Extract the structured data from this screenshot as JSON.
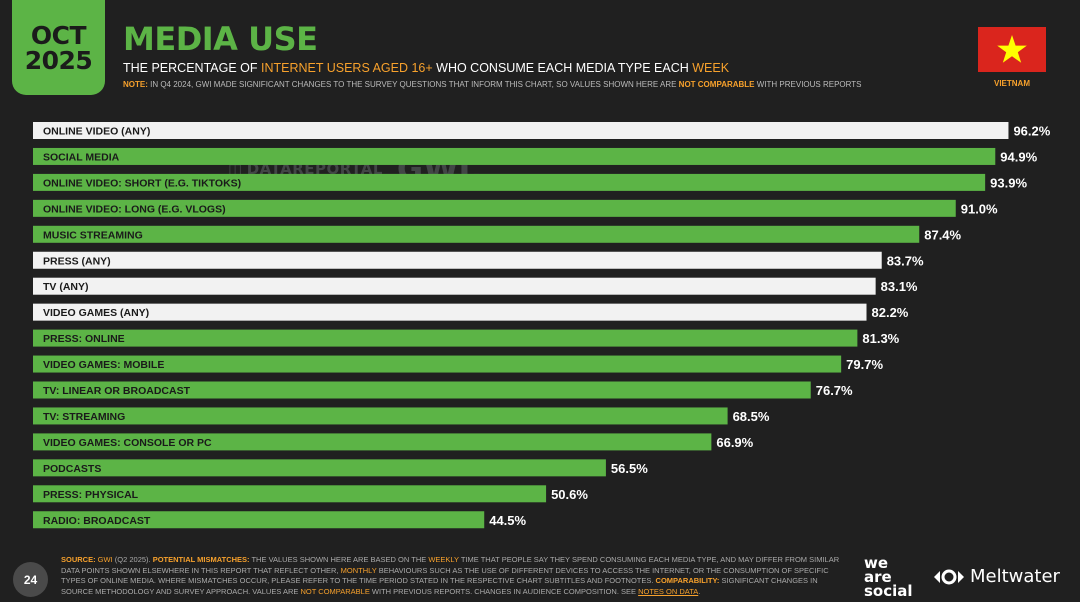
{
  "header": {
    "month": "OCT",
    "year": "2025",
    "title": "MEDIA USE",
    "subtitle_pre": "THE PERCENTAGE OF ",
    "subtitle_hl1": "INTERNET USERS AGED 16+",
    "subtitle_mid": " WHO CONSUME EACH MEDIA TYPE EACH ",
    "subtitle_hl2": "WEEK",
    "note_label": "NOTE:",
    "note_text": " IN Q4 2024, GWI MADE SIGNIFICANT CHANGES TO THE SURVEY QUESTIONS THAT INFORM THIS CHART, SO VALUES SHOWN HERE ARE ",
    "note_hl": "NOT COMPARABLE",
    "note_end": " WITH PREVIOUS REPORTS",
    "country": "VIETNAM"
  },
  "watermark": {
    "datareportal": "DATAREPORTAL",
    "gwi": "GWI."
  },
  "colors": {
    "green": "#5cb446",
    "white_bar": "#f2f2f2",
    "orange": "#f7a12c",
    "flag_red": "#da251d",
    "flag_star": "#ffff00"
  },
  "chart_data": {
    "type": "bar",
    "orientation": "horizontal",
    "title": "MEDIA USE",
    "value_suffix": "%",
    "xlim": [
      0,
      100
    ],
    "categories": [
      "ONLINE VIDEO (ANY)",
      "SOCIAL MEDIA",
      "ONLINE VIDEO: SHORT (E.G. TIKTOKS)",
      "ONLINE VIDEO: LONG (E.G. VLOGS)",
      "MUSIC STREAMING",
      "PRESS (ANY)",
      "TV (ANY)",
      "VIDEO GAMES (ANY)",
      "PRESS: ONLINE",
      "VIDEO GAMES: MOBILE",
      "TV: LINEAR OR BROADCAST",
      "TV: STREAMING",
      "VIDEO GAMES: CONSOLE OR PC",
      "PODCASTS",
      "PRESS: PHYSICAL",
      "RADIO: BROADCAST"
    ],
    "values": [
      96.2,
      94.9,
      93.9,
      91.0,
      87.4,
      83.7,
      83.1,
      82.2,
      81.3,
      79.7,
      76.7,
      68.5,
      66.9,
      56.5,
      50.6,
      44.5
    ],
    "labels": [
      "96.2%",
      "94.9%",
      "93.9%",
      "91.0%",
      "87.4%",
      "83.7%",
      "83.1%",
      "82.2%",
      "81.3%",
      "79.7%",
      "76.7%",
      "68.5%",
      "66.9%",
      "56.5%",
      "50.6%",
      "44.5%"
    ],
    "highlight": [
      false,
      true,
      true,
      true,
      true,
      false,
      false,
      false,
      true,
      true,
      true,
      true,
      true,
      true,
      true,
      true
    ]
  },
  "footer": {
    "source_label": "SOURCE:",
    "source_gwi": " GWI",
    "source_text": " (Q2 2025). ",
    "mismatch_label": "POTENTIAL MISMATCHES:",
    "mismatch_text1": " THE VALUES SHOWN HERE ARE BASED ON THE ",
    "weekly": "WEEKLY",
    "mismatch_text2": " TIME THAT PEOPLE SAY THEY SPEND CONSUMING EACH MEDIA TYPE, AND MAY DIFFER FROM SIMILAR DATA POINTS SHOWN ELSEWHERE IN THIS REPORT THAT REFLECT OTHER, ",
    "monthly": "MONTHLY",
    "mismatch_text3": " BEHAVIOURS SUCH AS THE USE OF DIFFERENT DEVICES TO ACCESS THE INTERNET, OR THE CONSUMPTION OF SPECIFIC TYPES OF ONLINE MEDIA. WHERE MISMATCHES OCCUR, PLEASE REFER TO THE TIME PERIOD STATED IN THE RESPECTIVE CHART SUBTITLES AND FOOTNOTES. ",
    "comparability_label": "COMPARABILITY:",
    "comparability_text1": " SIGNIFICANT CHANGES IN SOURCE METHODOLOGY AND SURVEY APPROACH. VALUES ARE ",
    "not_comparable": "NOT COMPARABLE",
    "comparability_text2": " WITH PREVIOUS REPORTS. CHANGES IN AUDIENCE COMPOSITION. SEE ",
    "notes_link": "NOTES ON DATA",
    "end": ".",
    "page_number": "24",
    "brand_1_line1": "we",
    "brand_1_line2": "are",
    "brand_1_line3": "social",
    "brand_2": "Meltwater"
  }
}
